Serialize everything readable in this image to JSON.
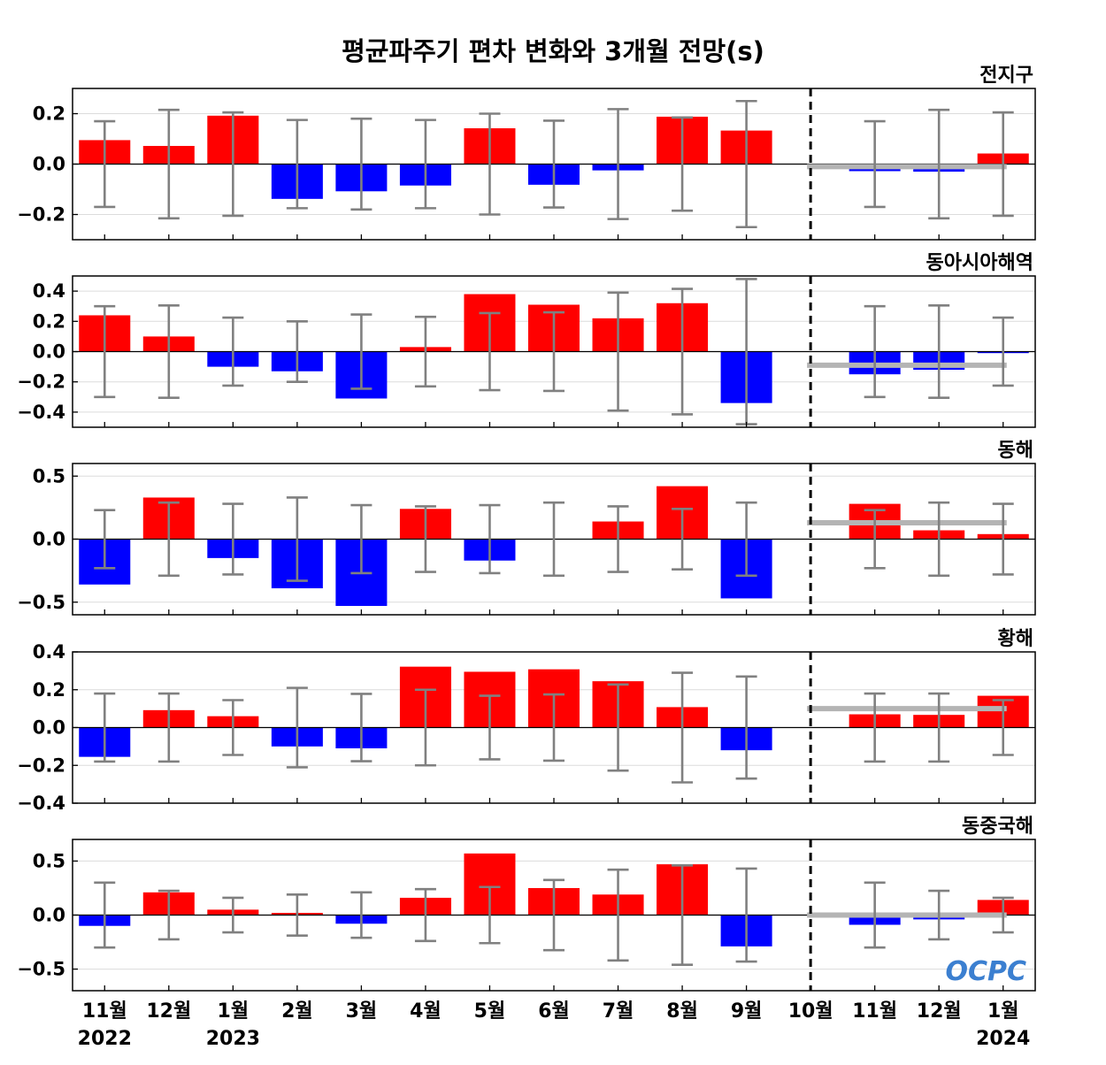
{
  "title": "평균파주기 편차 변화와 3개월 전망(s)",
  "logo": "OCPC",
  "colors": {
    "positive": "#ff0000",
    "negative": "#0000ff",
    "error": "#808080",
    "forecast_line": "#b4b4b4"
  },
  "chart_data": {
    "type": "bar",
    "categories": [
      "11월",
      "12월",
      "1월",
      "2월",
      "3월",
      "4월",
      "5월",
      "6월",
      "7월",
      "8월",
      "9월",
      "10월",
      "11월",
      "12월",
      "1월"
    ],
    "year_labels": [
      {
        "index": 0,
        "label": "2022"
      },
      {
        "index": 2,
        "label": "2023"
      },
      {
        "index": 14,
        "label": "2024"
      }
    ],
    "forecast_divider_between": [
      10,
      11
    ],
    "panels": [
      {
        "name": "전지구",
        "ylim": [
          -0.3,
          0.3
        ],
        "yticks": [
          -0.2,
          0.0,
          0.2
        ],
        "ytick_labels": [
          "−0.2",
          "0.0",
          "0.2"
        ],
        "values": [
          0.095,
          0.072,
          0.192,
          -0.138,
          -0.108,
          -0.085,
          0.142,
          -0.082,
          -0.025,
          0.188,
          0.133,
          0.0,
          -0.028,
          -0.03,
          0.042
        ],
        "errors": [
          0.17,
          0.215,
          0.205,
          0.175,
          0.18,
          0.175,
          0.2,
          0.172,
          0.218,
          0.185,
          0.25,
          null,
          0.17,
          0.215,
          0.205
        ],
        "forecast_level": -0.01
      },
      {
        "name": "동아시아해역",
        "ylim": [
          -0.5,
          0.5
        ],
        "yticks": [
          -0.4,
          -0.2,
          0.0,
          0.2,
          0.4
        ],
        "ytick_labels": [
          "−0.4",
          "−0.2",
          "0.0",
          "0.2",
          "0.4"
        ],
        "values": [
          0.24,
          0.1,
          -0.1,
          -0.13,
          -0.31,
          0.03,
          0.38,
          0.31,
          0.22,
          0.32,
          -0.34,
          0.0,
          -0.15,
          -0.12,
          -0.01
        ],
        "errors": [
          0.3,
          0.305,
          0.225,
          0.2,
          0.245,
          0.23,
          0.255,
          0.26,
          0.39,
          0.415,
          0.48,
          null,
          0.3,
          0.305,
          0.225
        ],
        "forecast_level": -0.09
      },
      {
        "name": "동해",
        "ylim": [
          -0.6,
          0.6
        ],
        "yticks": [
          -0.5,
          0.0,
          0.5
        ],
        "ytick_labels": [
          "−0.5",
          "0.0",
          "0.5"
        ],
        "values": [
          -0.36,
          0.33,
          -0.15,
          -0.39,
          -0.53,
          0.24,
          -0.17,
          0.0,
          0.14,
          0.42,
          -0.47,
          0.0,
          0.28,
          0.07,
          0.04
        ],
        "errors": [
          0.23,
          0.29,
          0.28,
          0.33,
          0.27,
          0.26,
          0.27,
          0.29,
          0.26,
          0.24,
          0.29,
          null,
          0.23,
          0.29,
          0.28
        ],
        "forecast_level": 0.13
      },
      {
        "name": "황해",
        "ylim": [
          -0.4,
          0.4
        ],
        "yticks": [
          -0.4,
          -0.2,
          0.0,
          0.2,
          0.4
        ],
        "ytick_labels": [
          "−0.4",
          "−0.2",
          "0.0",
          "0.2",
          "0.4"
        ],
        "values": [
          -0.155,
          0.092,
          0.06,
          -0.1,
          -0.11,
          0.322,
          0.295,
          0.308,
          0.245,
          0.108,
          -0.12,
          0.0,
          0.07,
          0.067,
          0.168
        ],
        "errors": [
          0.18,
          0.18,
          0.145,
          0.21,
          0.178,
          0.2,
          0.168,
          0.175,
          0.228,
          0.29,
          0.27,
          null,
          0.18,
          0.18,
          0.145
        ],
        "forecast_level": 0.1
      },
      {
        "name": "동중국해",
        "ylim": [
          -0.7,
          0.7
        ],
        "yticks": [
          -0.5,
          0.0,
          0.5
        ],
        "ytick_labels": [
          "−0.5",
          "0.0",
          "0.5"
        ],
        "values": [
          -0.1,
          0.21,
          0.05,
          0.02,
          -0.08,
          0.16,
          0.57,
          0.25,
          0.19,
          0.47,
          -0.29,
          0.0,
          -0.09,
          -0.04,
          0.14
        ],
        "errors": [
          0.3,
          0.225,
          0.16,
          0.19,
          0.21,
          0.24,
          0.26,
          0.325,
          0.42,
          0.46,
          0.43,
          null,
          0.3,
          0.225,
          0.16
        ],
        "forecast_level": 0.0
      }
    ]
  }
}
